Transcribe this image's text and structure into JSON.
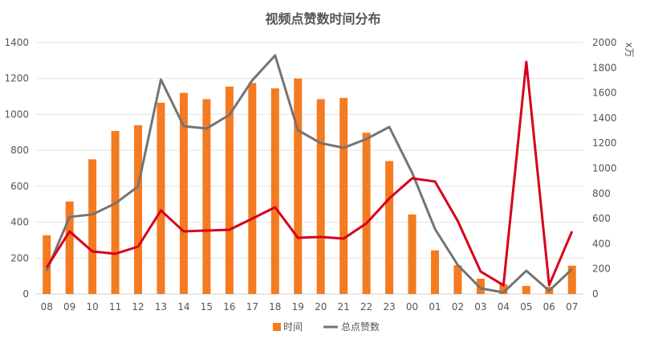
{
  "chart_data": {
    "type": "bar+line",
    "title": "视频点赞数时间分布",
    "categories": [
      "08",
      "09",
      "10",
      "11",
      "12",
      "13",
      "14",
      "15",
      "16",
      "17",
      "18",
      "19",
      "20",
      "21",
      "22",
      "23",
      "00",
      "01",
      "02",
      "03",
      "04",
      "05",
      "06",
      "07"
    ],
    "y_left": {
      "range": [
        0,
        1400
      ],
      "ticks": [
        0,
        200,
        400,
        600,
        800,
        1000,
        1200,
        1400
      ]
    },
    "y_right": {
      "range": [
        0,
        2000
      ],
      "ticks": [
        0,
        200,
        400,
        600,
        800,
        1000,
        1200,
        1400,
        1600,
        1800,
        2000
      ],
      "label": "x万"
    },
    "grid": true,
    "legend_position": "bottom",
    "series": [
      {
        "name": "时间",
        "type": "bar",
        "axis": "left",
        "color": "#F47B20",
        "values": [
          327,
          515,
          750,
          908,
          940,
          1065,
          1120,
          1085,
          1155,
          1175,
          1145,
          1200,
          1085,
          1092,
          898,
          740,
          443,
          243,
          160,
          85,
          55,
          45,
          40,
          158
        ]
      },
      {
        "name": "总点赞数",
        "type": "line",
        "axis": "right",
        "color": "#747474",
        "values": [
          185,
          613,
          633,
          720,
          856,
          1706,
          1335,
          1316,
          1425,
          1700,
          1898,
          1303,
          1200,
          1163,
          1233,
          1329,
          965,
          518,
          230,
          45,
          13,
          185,
          26,
          198
        ]
      },
      {
        "type": "line",
        "axis": "right",
        "color": "#D7001A",
        "values": [
          211,
          498,
          339,
          320,
          377,
          665,
          498,
          505,
          511,
          600,
          690,
          447,
          454,
          441,
          562,
          760,
          920,
          895,
          581,
          179,
          70,
          1847,
          70,
          498
        ]
      }
    ]
  }
}
